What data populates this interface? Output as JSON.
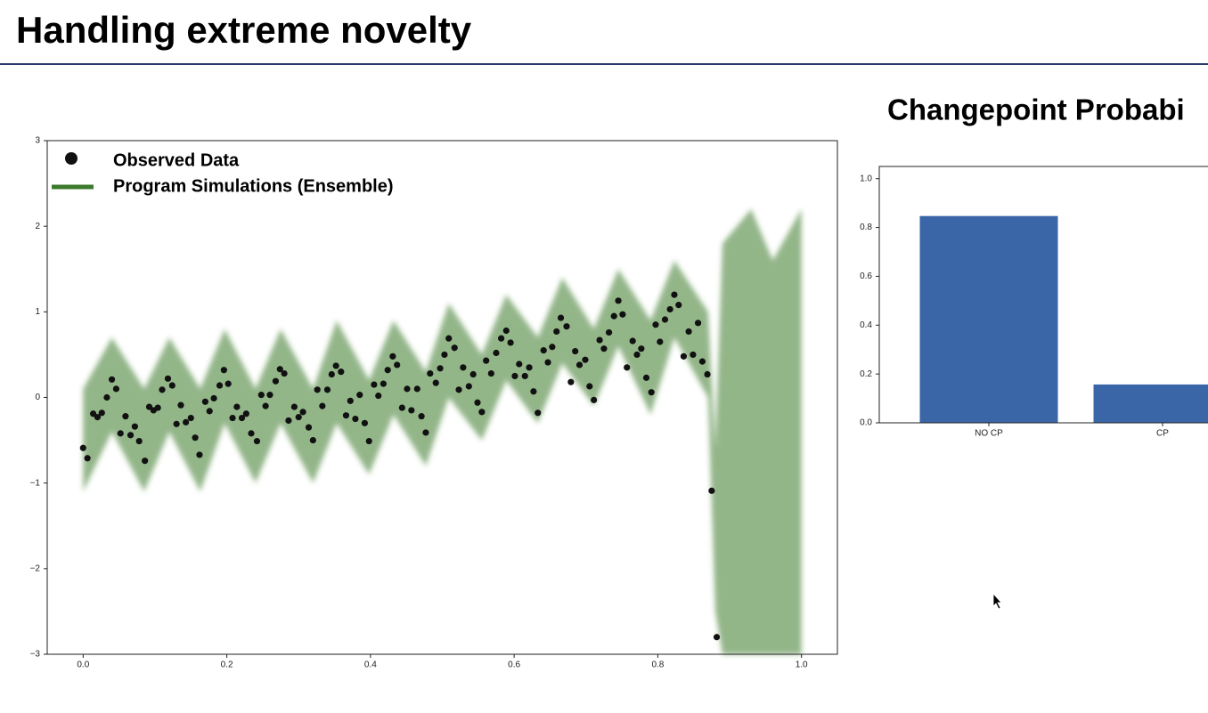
{
  "title": "Handling extreme novelty",
  "chart_data": [
    {
      "type": "scatter",
      "xlim": [
        -0.05,
        1.05
      ],
      "ylim": [
        -3,
        3
      ],
      "xticks": [
        {
          "value": 0,
          "label": "0.0"
        },
        0.2,
        0.4,
        0.6,
        0.8,
        {
          "value": 1,
          "label": "1.0"
        }
      ],
      "yticks": [
        {
          "value": -3,
          "label": "−3"
        },
        {
          "value": -2,
          "label": "−2"
        },
        {
          "value": -1,
          "label": "−1"
        },
        0,
        1,
        2,
        3
      ],
      "legend": "upper left",
      "series": [
        {
          "name": "Observed Data",
          "color": "#111111",
          "x": [
            0.0,
            0.006,
            0.014,
            0.02,
            0.026,
            0.033,
            0.04,
            0.046,
            0.052,
            0.059,
            0.066,
            0.072,
            0.078,
            0.086,
            0.092,
            0.098,
            0.104,
            0.11,
            0.118,
            0.124,
            0.13,
            0.136,
            0.143,
            0.15,
            0.156,
            0.162,
            0.17,
            0.176,
            0.182,
            0.19,
            0.196,
            0.202,
            0.208,
            0.214,
            0.221,
            0.227,
            0.234,
            0.242,
            0.248,
            0.254,
            0.26,
            0.268,
            0.274,
            0.28,
            0.286,
            0.294,
            0.3,
            0.306,
            0.314,
            0.32,
            0.326,
            0.333,
            0.34,
            0.346,
            0.352,
            0.359,
            0.366,
            0.372,
            0.379,
            0.385,
            0.392,
            0.398,
            0.405,
            0.411,
            0.418,
            0.424,
            0.431,
            0.437,
            0.444,
            0.451,
            0.457,
            0.465,
            0.471,
            0.477,
            0.483,
            0.491,
            0.497,
            0.503,
            0.509,
            0.517,
            0.523,
            0.529,
            0.537,
            0.543,
            0.549,
            0.555,
            0.561,
            0.568,
            0.575,
            0.582,
            0.589,
            0.595,
            0.601,
            0.607,
            0.615,
            0.621,
            0.627,
            0.633,
            0.641,
            0.647,
            0.653,
            0.659,
            0.665,
            0.673,
            0.679,
            0.685,
            0.691,
            0.699,
            0.705,
            0.711,
            0.719,
            0.725,
            0.732,
            0.739,
            0.745,
            0.751,
            0.757,
            0.765,
            0.771,
            0.777,
            0.784,
            0.791,
            0.797,
            0.803,
            0.81,
            0.817,
            0.823,
            0.829,
            0.836,
            0.843,
            0.849,
            0.856,
            0.862,
            0.869,
            0.875,
            0.882
          ],
          "values": [
            -0.59,
            -0.71,
            -0.19,
            -0.23,
            -0.18,
            0.0,
            0.21,
            0.1,
            -0.42,
            -0.22,
            -0.44,
            -0.34,
            -0.51,
            -0.74,
            -0.11,
            -0.15,
            -0.12,
            0.09,
            0.22,
            0.14,
            -0.31,
            -0.09,
            -0.29,
            -0.24,
            -0.47,
            -0.67,
            -0.05,
            -0.16,
            -0.01,
            0.14,
            0.32,
            0.16,
            -0.24,
            -0.11,
            -0.24,
            -0.19,
            -0.42,
            -0.51,
            0.03,
            -0.1,
            0.03,
            0.19,
            0.33,
            0.28,
            -0.27,
            -0.11,
            -0.23,
            -0.17,
            -0.35,
            -0.5,
            0.09,
            -0.1,
            0.09,
            0.27,
            0.37,
            0.3,
            -0.21,
            -0.04,
            -0.25,
            0.03,
            -0.3,
            -0.51,
            0.15,
            0.02,
            0.16,
            0.32,
            0.48,
            0.38,
            -0.12,
            0.1,
            -0.15,
            0.1,
            -0.22,
            -0.41,
            0.28,
            0.17,
            0.34,
            0.5,
            0.69,
            0.58,
            0.09,
            0.35,
            0.13,
            0.27,
            -0.06,
            -0.17,
            0.43,
            0.28,
            0.52,
            0.69,
            0.78,
            0.64,
            0.25,
            0.39,
            0.25,
            0.35,
            0.07,
            -0.18,
            0.55,
            0.41,
            0.59,
            0.77,
            0.93,
            0.83,
            0.18,
            0.54,
            0.38,
            0.44,
            0.13,
            -0.03,
            0.67,
            0.57,
            0.76,
            0.95,
            1.13,
            0.97,
            0.35,
            0.66,
            0.5,
            0.57,
            0.23,
            0.06,
            0.85,
            0.65,
            0.91,
            1.03,
            1.2,
            1.08,
            0.48,
            0.77,
            0.5,
            0.87,
            0.42,
            0.27,
            -1.09,
            -2.8
          ]
        },
        {
          "name": "Program Simulations (Ensemble)",
          "color": "#3b7a2a",
          "type": "band",
          "x": [
            0.0,
            0.04,
            0.085,
            0.12,
            0.163,
            0.197,
            0.24,
            0.275,
            0.32,
            0.353,
            0.398,
            0.432,
            0.477,
            0.509,
            0.555,
            0.589,
            0.633,
            0.667,
            0.711,
            0.745,
            0.79,
            0.823,
            0.87,
            0.88,
            0.89,
            0.93,
            0.96,
            1.0
          ],
          "upper": [
            0.1,
            0.7,
            0.1,
            0.7,
            0.1,
            0.8,
            0.1,
            0.8,
            0.1,
            0.9,
            0.2,
            0.9,
            0.3,
            1.1,
            0.5,
            1.2,
            0.7,
            1.4,
            0.8,
            1.5,
            0.9,
            1.6,
            1.0,
            -0.6,
            1.8,
            2.2,
            1.6,
            2.2
          ],
          "lower": [
            -1.1,
            -0.4,
            -1.1,
            -0.4,
            -1.1,
            -0.3,
            -1.0,
            -0.3,
            -1.0,
            -0.3,
            -0.9,
            -0.2,
            -0.8,
            0.0,
            -0.5,
            0.2,
            -0.3,
            0.4,
            -0.1,
            0.6,
            -0.2,
            0.7,
            0.0,
            -2.5,
            -3.0,
            -3.0,
            -3.0,
            -3.0
          ]
        }
      ]
    },
    {
      "type": "bar",
      "title": "Changepoint Probabi",
      "categories": [
        "NO CP",
        "CP"
      ],
      "values": [
        0.847,
        0.157
      ],
      "color": "#3a66a7",
      "ylim": [
        0,
        1.05
      ],
      "yticks": [
        {
          "value": 0,
          "label": "0.0"
        },
        0.2,
        0.4,
        0.6,
        0.8,
        {
          "value": 1,
          "label": "1.0"
        }
      ]
    }
  ]
}
